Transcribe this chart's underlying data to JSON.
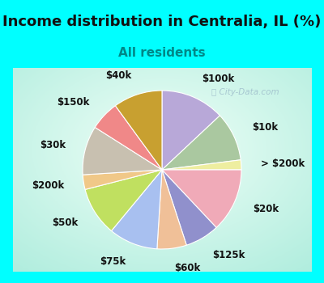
{
  "title": "Income distribution in Centralia, IL (%)",
  "subtitle": "All residents",
  "background_outer": "#00FFFF",
  "watermark": "City-Data.com",
  "segments": [
    {
      "label": "$100k",
      "value": 13,
      "color": "#b8a8d8"
    },
    {
      "label": "$10k",
      "value": 10,
      "color": "#aac8a0"
    },
    {
      "label": "> $200k",
      "value": 2,
      "color": "#eeeea0"
    },
    {
      "label": "$20k",
      "value": 13,
      "color": "#f0aab8"
    },
    {
      "label": "$125k",
      "value": 7,
      "color": "#9090cc"
    },
    {
      "label": "$60k",
      "value": 6,
      "color": "#f0c098"
    },
    {
      "label": "$75k",
      "value": 10,
      "color": "#a8c0f0"
    },
    {
      "label": "$50k",
      "value": 10,
      "color": "#c0e060"
    },
    {
      "label": "$200k",
      "value": 3,
      "color": "#f0c888"
    },
    {
      "label": "$30k",
      "value": 10,
      "color": "#c8c0b0"
    },
    {
      "label": "$150k",
      "value": 6,
      "color": "#f08888"
    },
    {
      "label": "$40k",
      "value": 10,
      "color": "#c8a030"
    }
  ],
  "label_fontsize": 8.5,
  "title_fontsize": 13,
  "subtitle_fontsize": 11,
  "title_color": "#111111",
  "subtitle_color": "#008888"
}
